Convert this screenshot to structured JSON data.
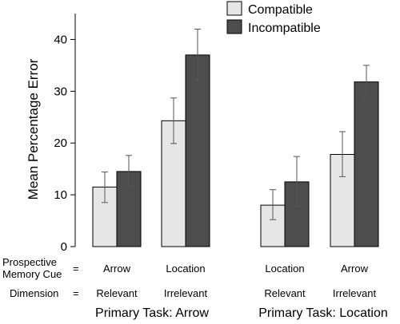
{
  "chart_data": {
    "type": "bar",
    "ylabel": "Mean Percentage Error",
    "xlabel": "",
    "ylim": [
      0,
      45
    ],
    "yticks": [
      0,
      10,
      20,
      30,
      40
    ],
    "grid": false,
    "legend_position": "top-right",
    "series": [
      {
        "name": "Compatible",
        "color": "#e6e6e6",
        "values": [
          11.5,
          24.3,
          8.0,
          17.8
        ],
        "error": [
          [
            8.5,
            14.4
          ],
          [
            19.9,
            28.7
          ],
          [
            5.2,
            11.0
          ],
          [
            13.5,
            22.2
          ]
        ]
      },
      {
        "name": "Incompatible",
        "color": "#4d4d4d",
        "values": [
          14.5,
          37.0,
          12.5,
          31.8
        ],
        "error": [
          [
            11.5,
            17.6
          ],
          [
            32.0,
            42.0
          ],
          [
            7.7,
            17.4
          ],
          [
            28.6,
            35.0
          ]
        ]
      }
    ],
    "categories": [
      {
        "cue": "Arrow",
        "dimension": "Relevant"
      },
      {
        "cue": "Location",
        "dimension": "Irrelevant"
      },
      {
        "cue": "Location",
        "dimension": "Relevant"
      },
      {
        "cue": "Arrow",
        "dimension": "Irrelevant"
      }
    ],
    "row_labels": {
      "cue_line1": "Prospective",
      "cue_line2": "Memory Cue",
      "dimension": "Dimension",
      "equals": "="
    },
    "groups": [
      {
        "label": "Primary Task: Arrow"
      },
      {
        "label": "Primary Task: Location"
      }
    ]
  }
}
